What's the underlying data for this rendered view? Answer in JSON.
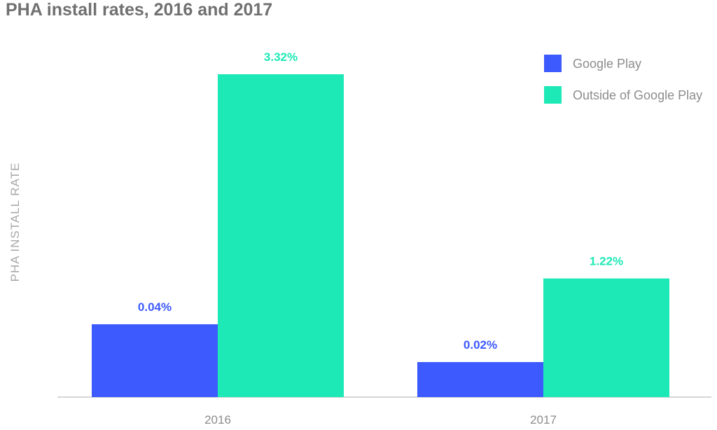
{
  "chart_data": {
    "type": "bar",
    "title": "PHA install rates, 2016 and 2017",
    "xlabel": "",
    "ylabel": "PHA INSTALL RATE",
    "categories": [
      "2016",
      "2017"
    ],
    "series": [
      {
        "name": "Google Play",
        "values": [
          0.04,
          0.02
        ],
        "labels": [
          "0.04%",
          "0.02%"
        ],
        "color": "#3d5afe"
      },
      {
        "name": "Outside of Google Play",
        "values": [
          3.32,
          1.22
        ],
        "labels": [
          "3.32%",
          "1.22%"
        ],
        "color": "#1de9b6"
      }
    ],
    "ylim": [
      0,
      3.32
    ],
    "grid": false,
    "legend_position": "top-right"
  },
  "label_colors": [
    "#3d5afe",
    "#1de9b6"
  ]
}
